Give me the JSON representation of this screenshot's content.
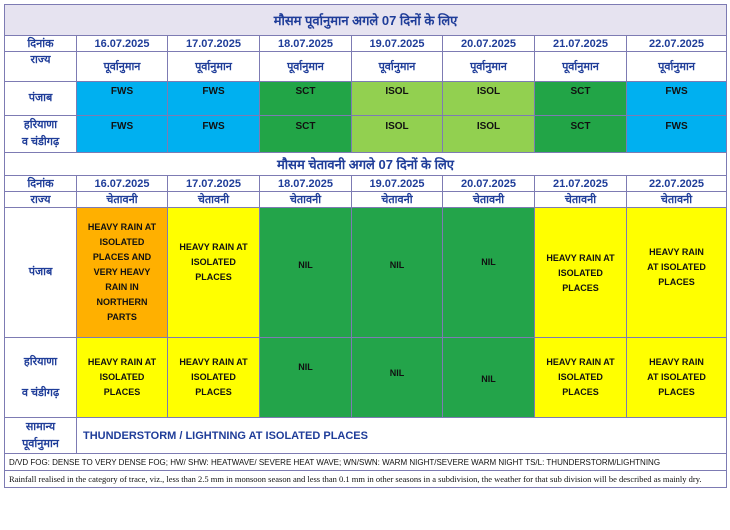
{
  "forecast": {
    "title": "मौसम पूर्वानुमान अगले 07 दिनों के लिए",
    "date_label": "दिनांक",
    "state_label": "राज्य",
    "dates": [
      "16.07.2025",
      "17.07.2025",
      "18.07.2025",
      "19.07.2025",
      "20.07.2025",
      "21.07.2025",
      "22.07.2025"
    ],
    "subheader": "पूर्वानुमान",
    "rows": [
      {
        "state": "पंजाब",
        "values": [
          "FWS",
          "FWS",
          "SCT",
          "ISOL",
          "ISOL",
          "SCT",
          "FWS"
        ]
      },
      {
        "state_line1": "हरियाणा",
        "state_line2": "व चंडीगढ़",
        "values": [
          "FWS",
          "FWS",
          "SCT",
          "ISOL",
          "ISOL",
          "SCT",
          "FWS"
        ]
      }
    ]
  },
  "warning": {
    "title": "मौसम चेतावनी अगले 07 दिनों के लिए",
    "date_label": "दिनांक",
    "state_label": "राज्य",
    "dates": [
      "16.07.2025",
      "17.07.2025",
      "18.07.2025",
      "19.07.2025",
      "20.07.2025",
      "21.07.2025",
      "22.07.2025"
    ],
    "subheader": "चेतावनी",
    "punjab": {
      "state": "पंजाब",
      "values": [
        [
          "HEAVY RAIN AT",
          "ISOLATED",
          "PLACES AND",
          "VERY HEAVY",
          "RAIN IN",
          "NORTHERN",
          "PARTS"
        ],
        [
          "HEAVY  RAIN AT",
          "ISOLATED",
          "PLACES"
        ],
        [
          "NIL"
        ],
        [
          "NIL"
        ],
        [
          "NIL"
        ],
        [
          "HEAVY  RAIN AT",
          "ISOLATED",
          "PLACES"
        ],
        [
          "HEAVY  RAIN",
          "AT ISOLATED",
          "PLACES"
        ]
      ]
    },
    "haryana": {
      "state_line1": "हरियाणा",
      "state_line2": "व चंडीगढ़",
      "values": [
        [
          "HEAVY  RAIN AT",
          "ISOLATED",
          "PLACES"
        ],
        [
          "HEAVY  RAIN AT",
          "ISOLATED",
          "PLACES"
        ],
        [
          "NIL"
        ],
        [
          "NIL"
        ],
        [
          "NIL"
        ],
        [
          "HEAVY  RAIN AT",
          "ISOLATED",
          "PLACES"
        ],
        [
          "HEAVY  RAIN",
          "AT ISOLATED",
          "PLACES"
        ]
      ]
    },
    "colors": {
      "orange": "#ffb000",
      "yellow": "#ffff00",
      "green": "#23a44a"
    }
  },
  "general": {
    "label_line1": "सामान्य",
    "label_line2": "पूर्वानुमान",
    "text": "THUNDERSTORM / LIGHTNING AT ISOLATED PLACES"
  },
  "footer": {
    "abbreviations": "D/VD FOG: DENSE TO VERY DENSE FOG; HW/ SHW: HEATWAVE/ SEVERE HEAT WAVE; WN/SWN: WARM NIGHT/SEVERE WARM NIGHT TS/L:  THUNDERSTORM/LIGHTNING",
    "note": "Rainfall realised in the category of trace, viz., less than 2.5 mm in monsoon season and less than 0.1 mm in other seasons in a subdivision, the weather for that sub division will be described as mainly dry."
  }
}
